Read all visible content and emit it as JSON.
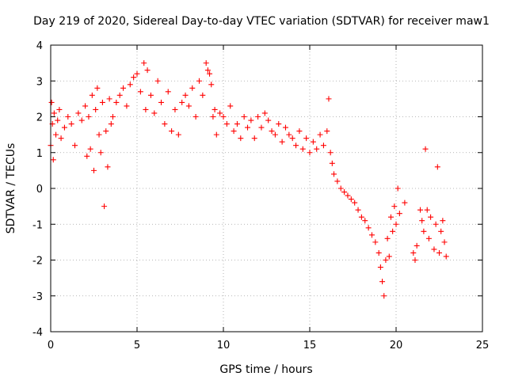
{
  "chart_data": {
    "type": "scatter",
    "title": "Day 219 of 2020, Sidereal Day-to-day VTEC variation (SDTVAR) for receiver maw1",
    "xlabel": "GPS time / hours",
    "ylabel": "SDTVAR / TECUs",
    "xlim": [
      0,
      25
    ],
    "ylim": [
      -4,
      4
    ],
    "xticks": [
      0,
      5,
      10,
      15,
      20,
      25
    ],
    "yticks": [
      -4,
      -3,
      -2,
      -1,
      0,
      1,
      2,
      3,
      4
    ],
    "grid": true,
    "marker": "+",
    "color": "#ff0000",
    "series": [
      {
        "name": "maw1",
        "x": [
          0.0,
          0.05,
          0.1,
          0.15,
          0.2,
          0.3,
          0.4,
          0.5,
          0.6,
          0.8,
          1.0,
          1.2,
          1.4,
          1.6,
          1.8,
          2.0,
          2.1,
          2.2,
          2.3,
          2.4,
          2.5,
          2.6,
          2.7,
          2.8,
          2.9,
          3.0,
          3.1,
          3.2,
          3.3,
          3.4,
          3.5,
          3.6,
          3.8,
          4.0,
          4.2,
          4.4,
          4.6,
          4.8,
          5.0,
          5.2,
          5.4,
          5.5,
          5.6,
          5.8,
          6.0,
          6.2,
          6.4,
          6.6,
          6.8,
          7.0,
          7.2,
          7.4,
          7.6,
          7.8,
          8.0,
          8.2,
          8.4,
          8.6,
          8.8,
          9.0,
          9.1,
          9.2,
          9.3,
          9.4,
          9.5,
          9.6,
          9.8,
          10.0,
          10.2,
          10.4,
          10.6,
          10.8,
          11.0,
          11.2,
          11.4,
          11.6,
          11.8,
          12.0,
          12.2,
          12.4,
          12.6,
          12.8,
          13.0,
          13.2,
          13.4,
          13.6,
          13.8,
          14.0,
          14.2,
          14.4,
          14.6,
          14.8,
          15.0,
          15.2,
          15.4,
          15.6,
          15.8,
          16.0,
          16.1,
          16.2,
          16.3,
          16.4,
          16.6,
          16.8,
          17.0,
          17.2,
          17.4,
          17.6,
          17.8,
          18.0,
          18.2,
          18.4,
          18.6,
          18.8,
          19.0,
          19.1,
          19.2,
          19.3,
          19.4,
          19.5,
          19.6,
          19.7,
          19.8,
          19.9,
          20.0,
          20.1,
          20.2,
          20.5,
          21.0,
          21.1,
          21.2,
          21.4,
          21.5,
          21.6,
          21.7,
          21.8,
          21.9,
          22.0,
          22.2,
          22.3,
          22.4,
          22.5,
          22.6,
          22.7,
          22.8,
          22.9
        ],
        "y": [
          1.2,
          2.4,
          1.8,
          0.8,
          2.1,
          1.5,
          1.9,
          2.2,
          1.4,
          1.7,
          2.0,
          1.8,
          1.2,
          2.1,
          1.9,
          2.3,
          0.9,
          2.0,
          1.1,
          2.6,
          0.5,
          2.2,
          2.8,
          1.5,
          1.0,
          2.4,
          -0.5,
          1.6,
          0.6,
          2.5,
          1.8,
          2.0,
          2.4,
          2.6,
          2.8,
          2.3,
          2.9,
          3.1,
          3.2,
          2.7,
          3.5,
          2.2,
          3.3,
          2.6,
          2.1,
          3.0,
          2.4,
          1.8,
          2.7,
          1.6,
          2.2,
          1.5,
          2.4,
          2.6,
          2.3,
          2.8,
          2.0,
          3.0,
          2.6,
          3.5,
          3.3,
          3.2,
          2.9,
          2.0,
          2.2,
          1.5,
          2.1,
          2.0,
          1.8,
          2.3,
          1.6,
          1.8,
          1.4,
          2.0,
          1.7,
          1.9,
          1.4,
          2.0,
          1.7,
          2.1,
          1.9,
          1.6,
          1.5,
          1.8,
          1.3,
          1.7,
          1.5,
          1.4,
          1.2,
          1.6,
          1.1,
          1.4,
          1.0,
          1.3,
          1.1,
          1.5,
          1.2,
          1.6,
          2.5,
          1.0,
          0.7,
          0.4,
          0.2,
          0.0,
          -0.1,
          -0.2,
          -0.3,
          -0.4,
          -0.6,
          -0.8,
          -0.9,
          -1.1,
          -1.3,
          -1.5,
          -1.8,
          -2.2,
          -2.6,
          -3.0,
          -2.0,
          -1.4,
          -1.9,
          -0.8,
          -1.2,
          -0.5,
          -1.0,
          0.0,
          -0.7,
          -0.4,
          -1.8,
          -2.0,
          -1.6,
          -0.6,
          -0.9,
          -1.2,
          1.1,
          -0.6,
          -1.4,
          -0.8,
          -1.7,
          -1.0,
          0.6,
          -1.8,
          -1.2,
          -0.9,
          -1.5,
          -1.9
        ]
      }
    ]
  }
}
